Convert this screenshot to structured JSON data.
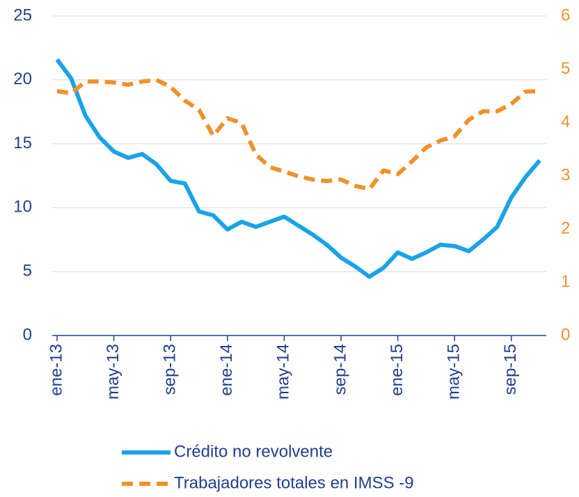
{
  "chart_data": {
    "type": "line",
    "categories": [
      "ene-13",
      null,
      null,
      null,
      "may-13",
      null,
      null,
      null,
      "sep-13",
      null,
      null,
      null,
      "ene-14",
      null,
      null,
      null,
      "may-14",
      null,
      null,
      null,
      "sep-14",
      null,
      null,
      null,
      "ene-15",
      null,
      null,
      null,
      "may-15",
      null,
      null,
      null,
      "sep-15",
      null,
      null
    ],
    "series": [
      {
        "name": "Crédito no revolvente",
        "color": "#1aa3e8",
        "dash": false,
        "values": [
          21.6,
          20.1,
          17.2,
          15.5,
          14.4,
          13.9,
          14.2,
          13.4,
          12.1,
          11.9,
          9.7,
          9.4,
          8.3,
          8.9,
          8.5,
          8.9,
          9.3,
          8.6,
          7.9,
          7.1,
          6.1,
          5.4,
          4.6,
          5.3,
          6.5,
          6.0,
          6.5,
          7.1,
          7.0,
          6.6,
          7.5,
          8.5,
          10.8,
          12.4,
          13.7
        ]
      },
      {
        "name": "Trabajadores totales en IMSS -9",
        "color": "#f0912a",
        "dash": true,
        "axis": "y2",
        "values": [
          4.59,
          4.55,
          4.77,
          4.77,
          4.75,
          4.71,
          4.77,
          4.8,
          4.67,
          4.41,
          4.24,
          3.75,
          4.08,
          3.99,
          3.4,
          3.16,
          3.08,
          2.99,
          2.93,
          2.9,
          2.93,
          2.81,
          2.75,
          3.1,
          3.03,
          3.27,
          3.53,
          3.66,
          3.74,
          4.05,
          4.21,
          4.21,
          4.35,
          4.58,
          4.59
        ]
      }
    ],
    "ylim": [
      0,
      25
    ],
    "yticks": [
      0,
      5,
      10,
      15,
      20,
      25
    ],
    "y2lim": [
      0,
      6
    ],
    "y2ticks": [
      0,
      1,
      2,
      3,
      4,
      5,
      6
    ],
    "grid": true,
    "legend": "bottom"
  }
}
